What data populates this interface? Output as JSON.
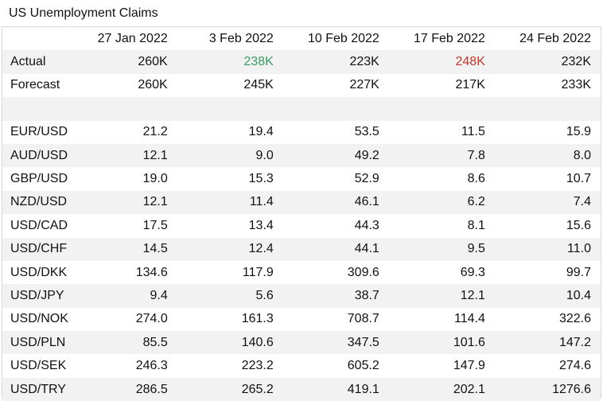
{
  "title": "US Unemployment Claims",
  "columns": [
    "27 Jan 2022",
    "3 Feb 2022",
    "10 Feb 2022",
    "17 Feb 2022",
    "24 Feb 2022"
  ],
  "actual": {
    "label": "Actual",
    "values": [
      "260K",
      "238K",
      "223K",
      "248K",
      "232K"
    ],
    "status": [
      "neutral",
      "better",
      "neutral",
      "worse",
      "neutral"
    ]
  },
  "forecast": {
    "label": "Forecast",
    "values": [
      "260K",
      "245K",
      "227K",
      "217K",
      "233K"
    ]
  },
  "pairs": [
    {
      "pair": "EUR/USD",
      "values": [
        "21.2",
        "19.4",
        "53.5",
        "11.5",
        "15.9"
      ]
    },
    {
      "pair": "AUD/USD",
      "values": [
        "12.1",
        "9.0",
        "49.2",
        "7.8",
        "8.0"
      ]
    },
    {
      "pair": "GBP/USD",
      "values": [
        "19.0",
        "15.3",
        "52.9",
        "8.6",
        "10.7"
      ]
    },
    {
      "pair": "NZD/USD",
      "values": [
        "12.1",
        "11.4",
        "46.1",
        "6.2",
        "7.4"
      ]
    },
    {
      "pair": "USD/CAD",
      "values": [
        "17.5",
        "13.4",
        "44.3",
        "8.1",
        "15.6"
      ]
    },
    {
      "pair": "USD/CHF",
      "values": [
        "14.5",
        "12.4",
        "44.1",
        "9.5",
        "11.0"
      ]
    },
    {
      "pair": "USD/DKK",
      "values": [
        "134.6",
        "117.9",
        "309.6",
        "69.3",
        "99.7"
      ]
    },
    {
      "pair": "USD/JPY",
      "values": [
        "9.4",
        "5.6",
        "38.7",
        "12.1",
        "10.4"
      ]
    },
    {
      "pair": "USD/NOK",
      "values": [
        "274.0",
        "161.3",
        "708.7",
        "114.4",
        "322.6"
      ]
    },
    {
      "pair": "USD/PLN",
      "values": [
        "85.5",
        "140.6",
        "347.5",
        "101.6",
        "147.2"
      ]
    },
    {
      "pair": "USD/SEK",
      "values": [
        "246.3",
        "223.2",
        "605.2",
        "147.9",
        "274.6"
      ]
    },
    {
      "pair": "USD/TRY",
      "values": [
        "286.5",
        "265.2",
        "419.1",
        "202.1",
        "1276.6"
      ]
    }
  ],
  "colors": {
    "better": "#3c9a63",
    "worse": "#c0392b",
    "shade": "#f2f2f2",
    "border": "#d9d9d9"
  }
}
